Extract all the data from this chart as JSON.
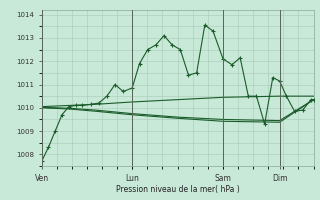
{
  "background_color": "#c8e8d8",
  "grid_color": "#a8c8b8",
  "line_color": "#1a5c2a",
  "marker_color": "#1a5c2a",
  "xlabel": "Pression niveau de la mer( hPa )",
  "ylim": [
    1007.5,
    1014.2
  ],
  "yticks": [
    1008,
    1009,
    1010,
    1011,
    1012,
    1013,
    1014
  ],
  "day_labels": [
    "Ven",
    "Lun",
    "Sam",
    "Dim"
  ],
  "day_positions": [
    0.0,
    0.333,
    0.667,
    0.875
  ],
  "xlim": [
    0.0,
    1.0
  ],
  "series1_x": [
    0.0,
    0.025,
    0.05,
    0.075,
    0.1,
    0.125,
    0.15,
    0.18,
    0.21,
    0.24,
    0.27,
    0.3,
    0.333,
    0.36,
    0.39,
    0.42,
    0.45,
    0.48,
    0.51,
    0.54,
    0.57,
    0.6,
    0.63,
    0.667,
    0.7,
    0.73,
    0.76,
    0.79,
    0.82,
    0.85,
    0.875,
    0.9,
    0.93,
    0.96,
    0.99,
    1.0
  ],
  "series1_y": [
    1007.7,
    1008.3,
    1009.0,
    1009.7,
    1010.05,
    1010.1,
    1010.1,
    1010.15,
    1010.2,
    1010.5,
    1011.0,
    1010.7,
    1010.85,
    1011.9,
    1012.5,
    1012.7,
    1013.1,
    1012.7,
    1012.5,
    1011.4,
    1011.5,
    1013.55,
    1013.3,
    1012.1,
    1011.85,
    1012.15,
    1010.5,
    1010.5,
    1009.3,
    1011.3,
    1011.15,
    1010.5,
    1009.85,
    1009.9,
    1010.35,
    1010.35
  ],
  "series2_x": [
    0.0,
    0.1,
    0.2,
    0.333,
    0.5,
    0.667,
    0.875,
    1.0
  ],
  "series2_y": [
    1010.05,
    1010.1,
    1010.15,
    1010.25,
    1010.35,
    1010.45,
    1010.5,
    1010.5
  ],
  "series3_x": [
    0.0,
    0.1,
    0.2,
    0.333,
    0.5,
    0.667,
    0.875,
    1.0
  ],
  "series3_y": [
    1010.0,
    1009.95,
    1009.85,
    1009.7,
    1009.55,
    1009.42,
    1009.38,
    1010.35
  ],
  "series4_x": [
    0.0,
    0.1,
    0.2,
    0.333,
    0.5,
    0.667,
    0.875,
    1.0
  ],
  "series4_y": [
    1010.02,
    1009.98,
    1009.9,
    1009.75,
    1009.6,
    1009.5,
    1009.45,
    1010.35
  ]
}
